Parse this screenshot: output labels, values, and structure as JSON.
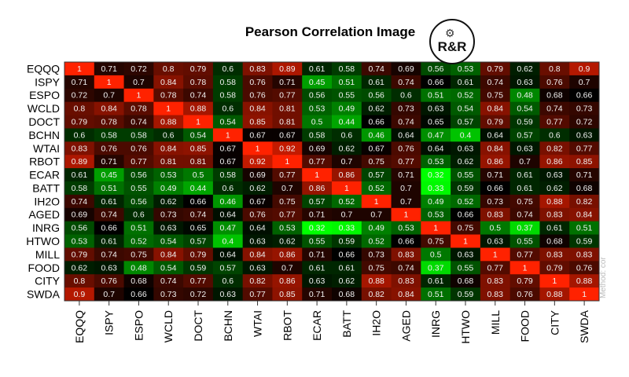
{
  "chart_data": {
    "type": "heatmap",
    "title": "Pearson Correlation  Image",
    "method_label": "Method: cor",
    "logo_text": "R&R",
    "labels": [
      "EQQQ",
      "ISPY",
      "ESPO",
      "WCLD",
      "DOCT",
      "BCHN",
      "WTAI",
      "RBOT",
      "ECAR",
      "BATT",
      "IH2O",
      "AGED",
      "INRG",
      "HTWO",
      "MILL",
      "FOOD",
      "CITY",
      "SWDA"
    ],
    "color_scale": {
      "low": "#00ff00",
      "mid": "#000000",
      "high": "#ff2200",
      "min": 0.32,
      "mid_value": 0.66,
      "max": 1
    },
    "values": [
      [
        1,
        0.71,
        0.72,
        0.8,
        0.79,
        0.6,
        0.83,
        0.89,
        0.61,
        0.58,
        0.74,
        0.69,
        0.56,
        0.53,
        0.79,
        0.62,
        0.8,
        0.9
      ],
      [
        0.71,
        1,
        0.7,
        0.84,
        0.78,
        0.58,
        0.76,
        0.71,
        0.45,
        0.51,
        0.61,
        0.74,
        0.66,
        0.61,
        0.74,
        0.63,
        0.76,
        0.7
      ],
      [
        0.72,
        0.7,
        1,
        0.78,
        0.74,
        0.58,
        0.76,
        0.77,
        0.56,
        0.55,
        0.56,
        0.6,
        0.51,
        0.52,
        0.75,
        0.48,
        0.68,
        0.66
      ],
      [
        0.8,
        0.84,
        0.78,
        1,
        0.88,
        0.6,
        0.84,
        0.81,
        0.53,
        0.49,
        0.62,
        0.73,
        0.63,
        0.54,
        0.84,
        0.54,
        0.74,
        0.73
      ],
      [
        0.79,
        0.78,
        0.74,
        0.88,
        1,
        0.54,
        0.85,
        0.81,
        0.5,
        0.44,
        0.66,
        0.74,
        0.65,
        0.57,
        0.79,
        0.59,
        0.77,
        0.72
      ],
      [
        0.6,
        0.58,
        0.58,
        0.6,
        0.54,
        1,
        0.67,
        0.67,
        0.58,
        0.6,
        0.46,
        0.64,
        0.47,
        0.4,
        0.64,
        0.57,
        0.6,
        0.63
      ],
      [
        0.83,
        0.76,
        0.76,
        0.84,
        0.85,
        0.67,
        1,
        0.92,
        0.69,
        0.62,
        0.67,
        0.76,
        0.64,
        0.63,
        0.84,
        0.63,
        0.82,
        0.77
      ],
      [
        0.89,
        0.71,
        0.77,
        0.81,
        0.81,
        0.67,
        0.92,
        1,
        0.77,
        0.7,
        0.75,
        0.77,
        0.53,
        0.62,
        0.86,
        0.7,
        0.86,
        0.85
      ],
      [
        0.61,
        0.45,
        0.56,
        0.53,
        0.5,
        0.58,
        0.69,
        0.77,
        1,
        0.86,
        0.57,
        0.71,
        0.32,
        0.55,
        0.71,
        0.61,
        0.63,
        0.71
      ],
      [
        0.58,
        0.51,
        0.55,
        0.49,
        0.44,
        0.6,
        0.62,
        0.7,
        0.86,
        1,
        0.52,
        0.7,
        0.33,
        0.59,
        0.66,
        0.61,
        0.62,
        0.68
      ],
      [
        0.74,
        0.61,
        0.56,
        0.62,
        0.66,
        0.46,
        0.67,
        0.75,
        0.57,
        0.52,
        1,
        0.7,
        0.49,
        0.52,
        0.73,
        0.75,
        0.88,
        0.82
      ],
      [
        0.69,
        0.74,
        0.6,
        0.73,
        0.74,
        0.64,
        0.76,
        0.77,
        0.71,
        0.7,
        0.7,
        1,
        0.53,
        0.66,
        0.83,
        0.74,
        0.83,
        0.84
      ],
      [
        0.56,
        0.66,
        0.51,
        0.63,
        0.65,
        0.47,
        0.64,
        0.53,
        0.32,
        0.33,
        0.49,
        0.53,
        1,
        0.75,
        0.5,
        0.37,
        0.61,
        0.51
      ],
      [
        0.53,
        0.61,
        0.52,
        0.54,
        0.57,
        0.4,
        0.63,
        0.62,
        0.55,
        0.59,
        0.52,
        0.66,
        0.75,
        1,
        0.63,
        0.55,
        0.68,
        0.59
      ],
      [
        0.79,
        0.74,
        0.75,
        0.84,
        0.79,
        0.64,
        0.84,
        0.86,
        0.71,
        0.66,
        0.73,
        0.83,
        0.5,
        0.63,
        1,
        0.77,
        0.83,
        0.83
      ],
      [
        0.62,
        0.63,
        0.48,
        0.54,
        0.59,
        0.57,
        0.63,
        0.7,
        0.61,
        0.61,
        0.75,
        0.74,
        0.37,
        0.55,
        0.77,
        1,
        0.79,
        0.76
      ],
      [
        0.8,
        0.76,
        0.68,
        0.74,
        0.77,
        0.6,
        0.82,
        0.86,
        0.63,
        0.62,
        0.88,
        0.83,
        0.61,
        0.68,
        0.83,
        0.79,
        1,
        0.88
      ],
      [
        0.9,
        0.7,
        0.66,
        0.73,
        0.72,
        0.63,
        0.77,
        0.85,
        0.71,
        0.68,
        0.82,
        0.84,
        0.51,
        0.59,
        0.83,
        0.76,
        0.88,
        1
      ]
    ]
  }
}
